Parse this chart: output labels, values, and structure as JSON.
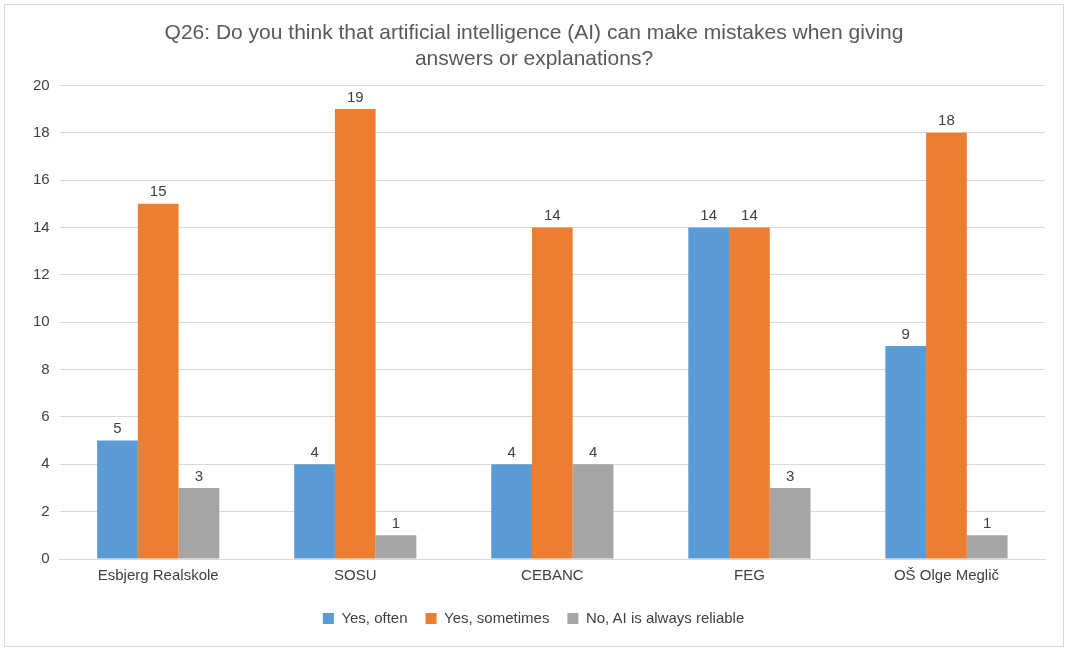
{
  "chart_data": {
    "type": "bar",
    "title": "Q26: Do you think that artificial intelligence (AI) can make mistakes when giving answers or explanations?",
    "categories": [
      "Esbjerg Realskole",
      "SOSU",
      "CEBANC",
      "FEG",
      "OŠ Olge Meglič"
    ],
    "series": [
      {
        "name": "Yes, often",
        "color": "#5b9bd5",
        "values": [
          5,
          4,
          4,
          14,
          9
        ]
      },
      {
        "name": "Yes, sometimes",
        "color": "#ed7d31",
        "values": [
          15,
          19,
          14,
          14,
          18
        ]
      },
      {
        "name": "No, AI is always reliable",
        "color": "#a5a5a5",
        "values": [
          3,
          1,
          4,
          3,
          1
        ]
      }
    ],
    "ylim": [
      0,
      20
    ],
    "yticks": [
      0,
      2,
      4,
      6,
      8,
      10,
      12,
      14,
      16,
      18,
      20
    ],
    "grid": "y",
    "legend": "bottom",
    "data_labels": true
  }
}
